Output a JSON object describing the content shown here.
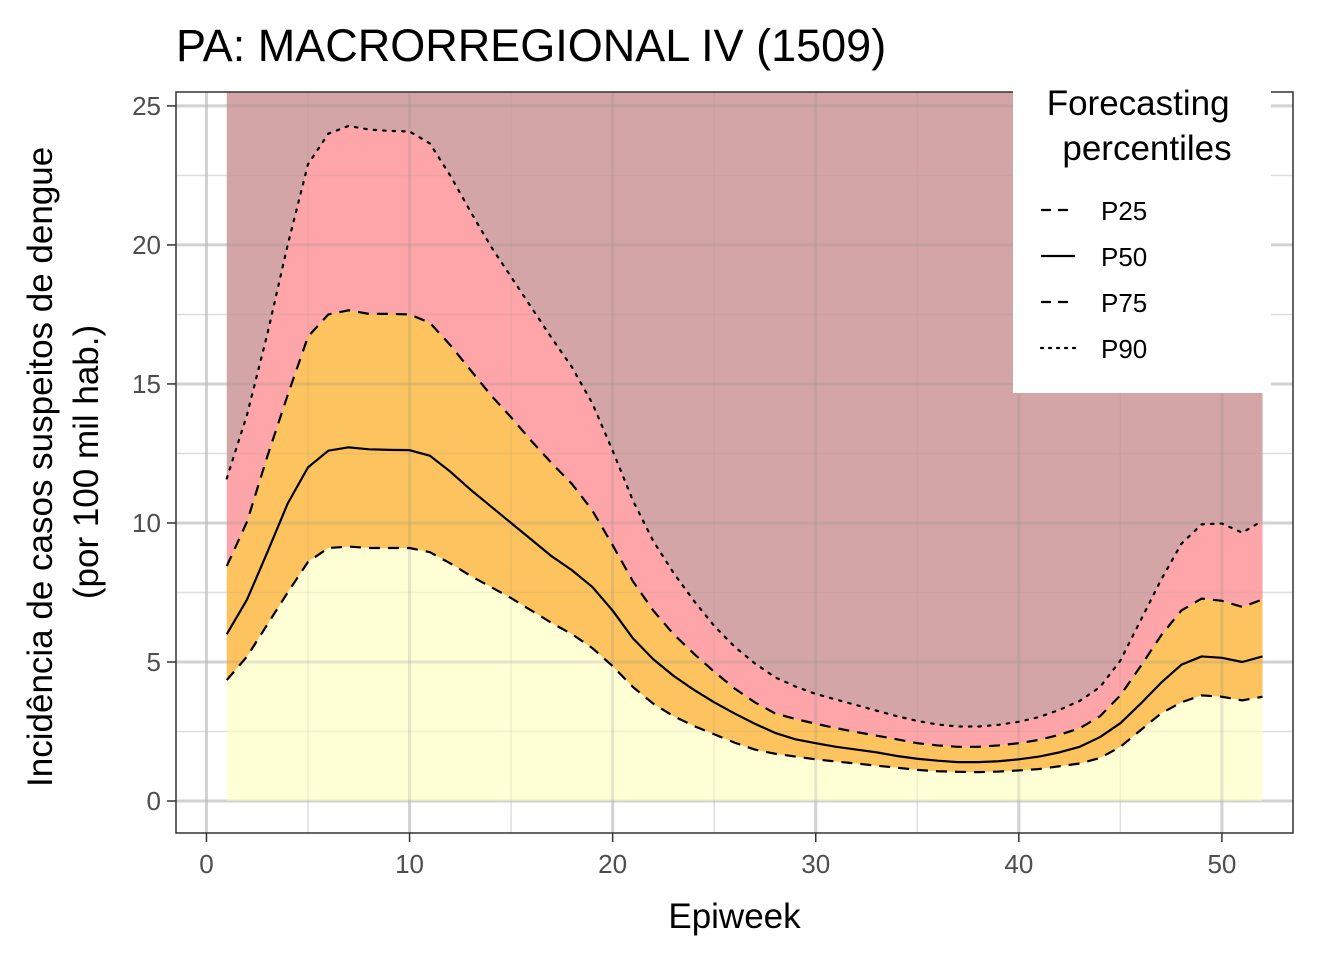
{
  "chart_data": {
    "type": "area",
    "title": "PA: MACRORREGIONAL IV (1509)",
    "xlabel": "Epiweek",
    "ylabel_lines": [
      "Incidência de casos suspeitos de dengue",
      "(por 100 mil hab.)"
    ],
    "xlim": [
      -1.5,
      53.5
    ],
    "ylim": [
      -1.15,
      25.5
    ],
    "x_ticks": [
      0,
      10,
      20,
      30,
      40,
      50
    ],
    "x_tick_labels": [
      "0",
      "10",
      "20",
      "30",
      "40",
      "50"
    ],
    "y_ticks": [
      0,
      5,
      10,
      15,
      20,
      25
    ],
    "y_tick_labels": [
      "0",
      "5",
      "10",
      "15",
      "20",
      "25"
    ],
    "grid": true,
    "legend": {
      "title_lines": [
        "Forecasting",
        "percentiles"
      ],
      "placement": "top-right",
      "entries": [
        {
          "label": "P25",
          "linetype": "dashed"
        },
        {
          "label": "P50",
          "linetype": "solid"
        },
        {
          "label": "P75",
          "linetype": "dashed"
        },
        {
          "label": "P90",
          "linetype": "dotted"
        }
      ]
    },
    "band_top": 25.5,
    "band_colors": {
      "below_p25": "#FFFFD6",
      "p25_p75": "#FDC35E",
      "p75_p90": "#FDA5A8",
      "above_p90": "#D4A5A6"
    },
    "x": [
      1,
      2,
      3,
      4,
      5,
      6,
      7,
      8,
      9,
      10,
      11,
      12,
      13,
      14,
      15,
      16,
      17,
      18,
      19,
      20,
      21,
      22,
      23,
      24,
      25,
      26,
      27,
      28,
      29,
      30,
      31,
      32,
      33,
      34,
      35,
      36,
      37,
      38,
      39,
      40,
      41,
      42,
      43,
      44,
      45,
      46,
      47,
      48,
      49,
      50,
      51,
      52
    ],
    "series": [
      {
        "name": "P25",
        "values": [
          4.35,
          5.2,
          6.35,
          7.5,
          8.6,
          9.1,
          9.15,
          9.1,
          9.1,
          9.1,
          8.95,
          8.55,
          8.1,
          7.7,
          7.3,
          6.85,
          6.4,
          6.0,
          5.5,
          4.85,
          4.1,
          3.5,
          3.05,
          2.7,
          2.4,
          2.1,
          1.85,
          1.7,
          1.6,
          1.5,
          1.42,
          1.35,
          1.27,
          1.2,
          1.12,
          1.07,
          1.05,
          1.04,
          1.06,
          1.1,
          1.15,
          1.25,
          1.35,
          1.55,
          1.95,
          2.55,
          3.15,
          3.55,
          3.8,
          3.75,
          3.62,
          3.75
        ]
      },
      {
        "name": "P50",
        "values": [
          6.0,
          7.25,
          8.95,
          10.7,
          12.0,
          12.6,
          12.72,
          12.65,
          12.63,
          12.62,
          12.42,
          11.85,
          11.2,
          10.6,
          10.0,
          9.4,
          8.8,
          8.3,
          7.7,
          6.85,
          5.85,
          5.1,
          4.5,
          4.0,
          3.55,
          3.15,
          2.78,
          2.45,
          2.22,
          2.08,
          1.95,
          1.85,
          1.75,
          1.62,
          1.52,
          1.45,
          1.4,
          1.4,
          1.43,
          1.5,
          1.6,
          1.75,
          1.95,
          2.3,
          2.8,
          3.5,
          4.25,
          4.9,
          5.2,
          5.15,
          5.0,
          5.2
        ]
      },
      {
        "name": "P75",
        "values": [
          8.45,
          10.05,
          12.4,
          14.6,
          16.7,
          17.5,
          17.65,
          17.52,
          17.52,
          17.5,
          17.2,
          16.4,
          15.5,
          14.6,
          13.8,
          12.95,
          12.15,
          11.4,
          10.45,
          9.2,
          7.9,
          6.85,
          6.0,
          5.3,
          4.65,
          4.05,
          3.55,
          3.15,
          2.95,
          2.78,
          2.62,
          2.48,
          2.35,
          2.22,
          2.08,
          2.0,
          1.95,
          1.95,
          2.0,
          2.08,
          2.2,
          2.38,
          2.62,
          3.05,
          3.8,
          4.85,
          5.95,
          6.85,
          7.28,
          7.2,
          6.98,
          7.25
        ]
      },
      {
        "name": "P90",
        "values": [
          11.6,
          13.9,
          16.8,
          20.0,
          22.9,
          24.0,
          24.28,
          24.15,
          24.1,
          24.08,
          23.65,
          22.5,
          21.2,
          19.95,
          18.85,
          17.75,
          16.65,
          15.6,
          14.3,
          12.6,
          10.8,
          9.35,
          8.2,
          7.2,
          6.3,
          5.55,
          4.95,
          4.45,
          4.12,
          3.85,
          3.65,
          3.45,
          3.25,
          3.05,
          2.88,
          2.75,
          2.68,
          2.68,
          2.74,
          2.85,
          3.02,
          3.28,
          3.6,
          4.1,
          5.05,
          6.5,
          7.95,
          9.25,
          9.95,
          9.98,
          9.65,
          10.08
        ]
      }
    ]
  }
}
